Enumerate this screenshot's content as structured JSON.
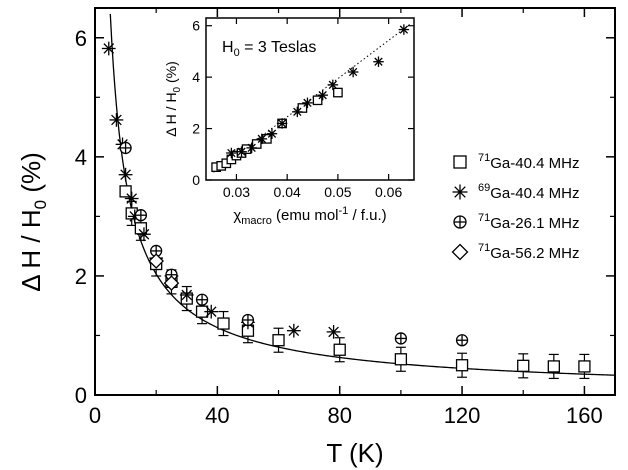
{
  "chart_data": [
    {
      "type": "scatter",
      "xlabel": "T (K)",
      "ylabel": "Δ H / H0 (%)",
      "xlim": [
        0,
        170
      ],
      "ylim": [
        0,
        6.5
      ],
      "xticks": [
        "0",
        "40",
        "80",
        "120",
        "160"
      ],
      "yticks": [
        "0",
        "2",
        "4",
        "6"
      ],
      "legend_position": "right",
      "series": [
        {
          "name": "71Ga-40.4 MHz",
          "marker": "square",
          "x": [
            10,
            12,
            15,
            20,
            25,
            30,
            35,
            42,
            50,
            60,
            80,
            100,
            120,
            140,
            150,
            160
          ],
          "y": [
            3.42,
            3.05,
            2.8,
            2.2,
            1.9,
            1.62,
            1.4,
            1.2,
            1.08,
            0.92,
            0.76,
            0.6,
            0.5,
            0.49,
            0.48,
            0.48
          ]
        },
        {
          "name": "69Ga-40.4 MHz",
          "marker": "asterisk",
          "x": [
            4.5,
            7,
            9,
            10,
            12,
            13,
            16,
            20,
            25,
            30,
            38,
            50,
            65,
            78
          ],
          "y": [
            5.82,
            4.62,
            4.21,
            3.7,
            3.3,
            3.0,
            2.7,
            2.3,
            2.0,
            1.68,
            1.4,
            1.22,
            1.08,
            1.06
          ]
        },
        {
          "name": "71Ga-26.1 MHz",
          "marker": "circle-plus",
          "x": [
            10,
            15,
            20,
            25,
            35,
            50,
            100,
            120
          ],
          "y": [
            4.15,
            3.02,
            2.42,
            2.02,
            1.6,
            1.26,
            0.95,
            0.92
          ]
        },
        {
          "name": "71Ga-56.2 MHz",
          "marker": "diamond",
          "x": [
            20,
            25
          ],
          "y": [
            2.25,
            1.88
          ]
        }
      ],
      "fit_curve": {
        "style": "solid",
        "form": "y = 26.2 / (x + 0.25)^0.85",
        "x_range": [
          1,
          170
        ]
      }
    },
    {
      "type": "scatter",
      "xlabel": "χmacro (emu mol-1 / f.u.)",
      "ylabel": "Δ H / H0 (%)",
      "xlim": [
        0.024,
        0.065
      ],
      "ylim": [
        0,
        6.3
      ],
      "xticks": [
        "0.03",
        "0.04",
        "0.05",
        "0.06"
      ],
      "yticks": [
        "0",
        "2",
        "4",
        "6"
      ],
      "annotation": "H0 = 3 Teslas",
      "series": [
        {
          "name": "71Ga-40.4 MHz",
          "marker": "square",
          "x": [
            0.026,
            0.027,
            0.028,
            0.029,
            0.03,
            0.031,
            0.032,
            0.034,
            0.036,
            0.039,
            0.043,
            0.046,
            0.05
          ],
          "y": [
            0.5,
            0.55,
            0.65,
            0.8,
            0.95,
            1.05,
            1.2,
            1.4,
            1.6,
            2.2,
            2.8,
            3.1,
            3.4
          ]
        },
        {
          "name": "69Ga-40.4 MHz",
          "marker": "asterisk",
          "x": [
            0.029,
            0.031,
            0.033,
            0.035,
            0.037,
            0.039,
            0.042,
            0.044,
            0.047,
            0.049,
            0.053,
            0.058,
            0.063
          ],
          "y": [
            1.05,
            1.1,
            1.25,
            1.6,
            1.8,
            2.2,
            2.65,
            3.0,
            3.3,
            3.7,
            4.2,
            4.6,
            5.85
          ]
        }
      ],
      "fit_line": {
        "style": "dotted",
        "x": [
          0.0255,
          0.0645
        ],
        "y": [
          0.3,
          6.1
        ]
      }
    }
  ]
}
